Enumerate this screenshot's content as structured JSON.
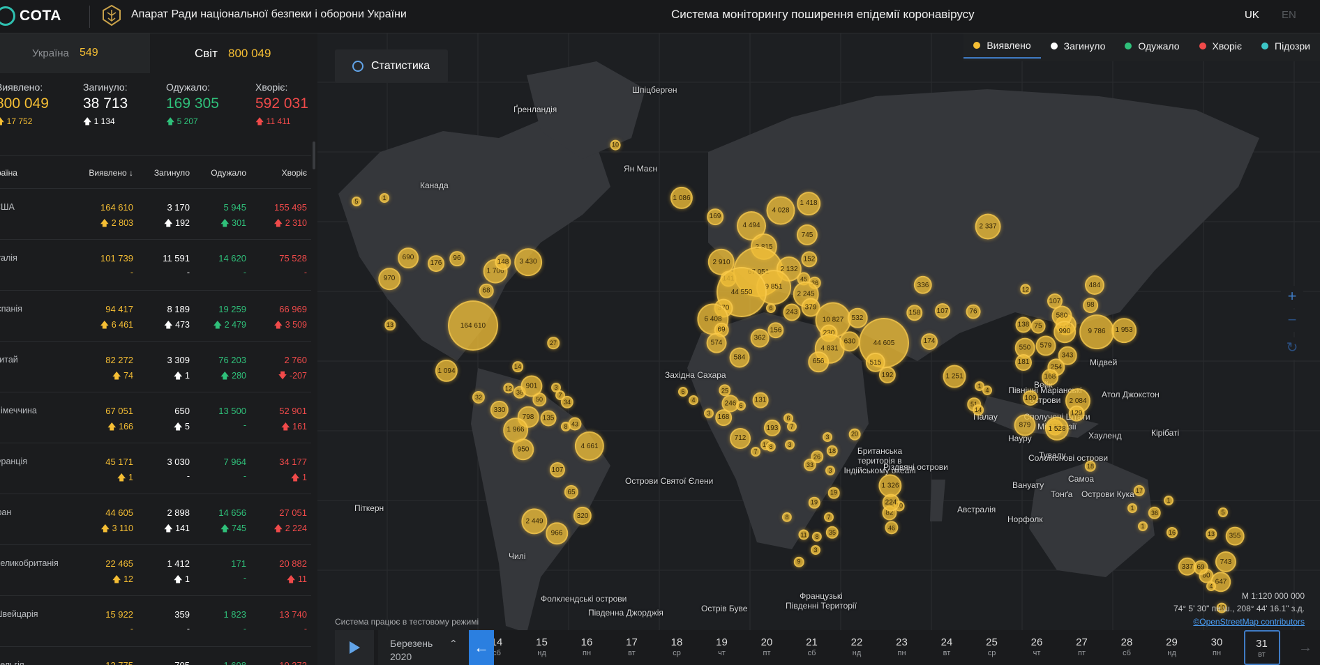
{
  "header": {
    "logo_text": "COTA",
    "org_title": "Апарат Ради національної безпеки і оборони України",
    "system_title": "Система моніторингу поширення епідемії коронавірусу",
    "lang_uk": "UK",
    "lang_en": "EN"
  },
  "tabs": {
    "ukraine_label": "Україна",
    "ukraine_value": "549",
    "world_label": "Світ",
    "world_value": "800 049"
  },
  "summary": {
    "detected": {
      "label": "Виявлено:",
      "value": "800 049",
      "delta": "17 752"
    },
    "deaths": {
      "label": "Загинуло:",
      "value": "38 713",
      "delta": "1 134"
    },
    "recovered": {
      "label": "Одужало:",
      "value": "169 305",
      "delta": "5 207"
    },
    "sick": {
      "label": "Хворіє:",
      "value": "592 031",
      "delta": "11 411"
    }
  },
  "table": {
    "headers": {
      "country": "Країна",
      "detected": "Виявлено",
      "deaths": "Загинуло",
      "recovered": "Одужало",
      "sick": "Хворіє"
    },
    "rows": [
      {
        "country": "США",
        "detected": "164 610",
        "detected_delta": "2 803",
        "deaths": "3 170",
        "deaths_delta": "192",
        "recovered": "5 945",
        "recovered_delta": "301",
        "sick": "155 495",
        "sick_delta": "2 310"
      },
      {
        "country": "Італія",
        "detected": "101 739",
        "detected_delta": "-",
        "deaths": "11 591",
        "deaths_delta": "-",
        "recovered": "14 620",
        "recovered_delta": "-",
        "sick": "75 528",
        "sick_delta": "-"
      },
      {
        "country": "Іспанія",
        "detected": "94 417",
        "detected_delta": "6 461",
        "deaths": "8 189",
        "deaths_delta": "473",
        "recovered": "19 259",
        "recovered_delta": "2 479",
        "sick": "66 969",
        "sick_delta": "3 509"
      },
      {
        "country": "Китай",
        "detected": "82 272",
        "detected_delta": "74",
        "deaths": "3 309",
        "deaths_delta": "1",
        "recovered": "76 203",
        "recovered_delta": "280",
        "sick": "2 760",
        "sick_delta": "-207"
      },
      {
        "country": "Німеччина",
        "detected": "67 051",
        "detected_delta": "166",
        "deaths": "650",
        "deaths_delta": "5",
        "recovered": "13 500",
        "recovered_delta": "-",
        "sick": "52 901",
        "sick_delta": "161"
      },
      {
        "country": "Франція",
        "detected": "45 171",
        "detected_delta": "1",
        "deaths": "3 030",
        "deaths_delta": "-",
        "recovered": "7 964",
        "recovered_delta": "-",
        "sick": "34 177",
        "sick_delta": "1"
      },
      {
        "country": "Іран",
        "detected": "44 605",
        "detected_delta": "3 110",
        "deaths": "2 898",
        "deaths_delta": "141",
        "recovered": "14 656",
        "recovered_delta": "745",
        "sick": "27 051",
        "sick_delta": "2 224"
      },
      {
        "country": "Великобританія",
        "detected": "22 465",
        "detected_delta": "12",
        "deaths": "1 412",
        "deaths_delta": "1",
        "recovered": "171",
        "recovered_delta": "-",
        "sick": "20 882",
        "sick_delta": "11"
      },
      {
        "country": "Швейцарія",
        "detected": "15 922",
        "detected_delta": "-",
        "deaths": "359",
        "deaths_delta": "-",
        "recovered": "1 823",
        "recovered_delta": "-",
        "sick": "13 740",
        "sick_delta": "-"
      },
      {
        "country": "Бельгія",
        "detected": "12 775",
        "detected_delta": "876",
        "deaths": "705",
        "deaths_delta": "192",
        "recovered": "1 698",
        "recovered_delta": "171",
        "sick": "10 372",
        "sick_delta": "513"
      }
    ]
  },
  "map": {
    "stats_button": "Статистика",
    "legend": [
      {
        "label": "Виявлено",
        "color": "#f5be34",
        "active": true
      },
      {
        "label": "Загинуло",
        "color": "#ffffff",
        "active": false
      },
      {
        "label": "Одужало",
        "color": "#2fc07a",
        "active": false
      },
      {
        "label": "Хворіє",
        "color": "#f04a4a",
        "active": false
      },
      {
        "label": "Підозри",
        "color": "#3cc6c6",
        "active": false
      }
    ],
    "zoom_in": "+",
    "zoom_out": "−",
    "reset": "↻",
    "scale": "М 1:120 000 000",
    "coords": "74° 5' 30\" пн.ш., 208° 44' 16.1\" з.д.",
    "attribution": "©OpenStreetMap contributors",
    "test_note": "Система працює в тестовому режимі",
    "labels": [
      {
        "text": "Шпіцберген"
      },
      {
        "text": "Ґренландія"
      },
      {
        "text": "Ян Маєн"
      },
      {
        "text": "Канада"
      },
      {
        "text": "Західна Сахара"
      },
      {
        "text": "Острови Святої Єлени"
      },
      {
        "text": "Піткерн"
      },
      {
        "text": "Фолклендські острови"
      },
      {
        "text": "Південна Джорджія"
      },
      {
        "text": "Острів Буве"
      },
      {
        "text": "Британська територія в Індійському океані"
      },
      {
        "text": "Різдвяні острови"
      },
      {
        "text": "Французькі Південні Території"
      },
      {
        "text": "Північні Маріанські острови"
      },
      {
        "text": "Сполучені Штати Мікронезії"
      },
      {
        "text": "Палау"
      },
      {
        "text": "Науру"
      },
      {
        "text": "Соломонові острови"
      },
      {
        "text": "Вануату"
      },
      {
        "text": "Тувалу"
      },
      {
        "text": "Самоа"
      },
      {
        "text": "Тонґа"
      },
      {
        "text": "Острови Кука"
      },
      {
        "text": "Норфолк"
      },
      {
        "text": "Австралія"
      },
      {
        "text": "Мідвей"
      },
      {
        "text": "Вейк"
      },
      {
        "text": "Атол Джокстон"
      },
      {
        "text": "Хауленд"
      },
      {
        "text": "Кірібаті"
      },
      {
        "text": "Чилі"
      }
    ],
    "bubbles": [
      {
        "value": "164 610"
      },
      {
        "value": "1 706"
      },
      {
        "value": "3 430"
      },
      {
        "value": "690"
      },
      {
        "value": "970"
      },
      {
        "value": "176"
      },
      {
        "value": "96"
      },
      {
        "value": "148"
      },
      {
        "value": "68"
      },
      {
        "value": "13"
      },
      {
        "value": "5"
      },
      {
        "value": "1"
      },
      {
        "value": "10"
      },
      {
        "value": "27"
      },
      {
        "value": "1 094"
      },
      {
        "value": "1 086"
      },
      {
        "value": "169"
      },
      {
        "value": "4 028"
      },
      {
        "value": "1 418"
      },
      {
        "value": "4 494"
      },
      {
        "value": "745"
      },
      {
        "value": "2 815"
      },
      {
        "value": "2 910"
      },
      {
        "value": "67 051"
      },
      {
        "value": "2 132"
      },
      {
        "value": "152"
      },
      {
        "value": "141"
      },
      {
        "value": "9 851"
      },
      {
        "value": "44 550"
      },
      {
        "value": "45"
      },
      {
        "value": "36"
      },
      {
        "value": "2 245"
      },
      {
        "value": "370"
      },
      {
        "value": "6"
      },
      {
        "value": "379"
      },
      {
        "value": "243"
      },
      {
        "value": "6 408"
      },
      {
        "value": "69"
      },
      {
        "value": "574"
      },
      {
        "value": "156"
      },
      {
        "value": "362"
      },
      {
        "value": "584"
      },
      {
        "value": "10 827"
      },
      {
        "value": "230"
      },
      {
        "value": "4 831"
      },
      {
        "value": "630"
      },
      {
        "value": "44 605"
      },
      {
        "value": "532"
      },
      {
        "value": "515"
      },
      {
        "value": "192"
      },
      {
        "value": "656"
      },
      {
        "value": "174"
      },
      {
        "value": "158"
      },
      {
        "value": "107"
      },
      {
        "value": "76"
      },
      {
        "value": "336"
      },
      {
        "value": "2 337"
      },
      {
        "value": "1 251"
      },
      {
        "value": "484"
      },
      {
        "value": "12"
      },
      {
        "value": "107"
      },
      {
        "value": "98"
      },
      {
        "value": "9 786"
      },
      {
        "value": "1 953"
      },
      {
        "value": "774"
      },
      {
        "value": "580"
      },
      {
        "value": "990"
      },
      {
        "value": "343"
      },
      {
        "value": "579"
      },
      {
        "value": "550"
      },
      {
        "value": "138"
      },
      {
        "value": "75"
      },
      {
        "value": "254"
      },
      {
        "value": "181"
      },
      {
        "value": "168"
      },
      {
        "value": "109"
      },
      {
        "value": "2 084"
      },
      {
        "value": "129"
      },
      {
        "value": "129"
      },
      {
        "value": "879"
      },
      {
        "value": "1 528"
      },
      {
        "value": "14"
      },
      {
        "value": "51"
      },
      {
        "value": "4"
      },
      {
        "value": "1"
      },
      {
        "value": "14"
      },
      {
        "value": "32"
      },
      {
        "value": "330"
      },
      {
        "value": "12"
      },
      {
        "value": "36"
      },
      {
        "value": "50"
      },
      {
        "value": "901"
      },
      {
        "value": "3"
      },
      {
        "value": "7"
      },
      {
        "value": "34"
      },
      {
        "value": "798"
      },
      {
        "value": "135"
      },
      {
        "value": "8"
      },
      {
        "value": "43"
      },
      {
        "value": "1 966"
      },
      {
        "value": "950"
      },
      {
        "value": "4 661"
      },
      {
        "value": "107"
      },
      {
        "value": "65"
      },
      {
        "value": "320"
      },
      {
        "value": "2 449"
      },
      {
        "value": "966"
      },
      {
        "value": "6"
      },
      {
        "value": "4"
      },
      {
        "value": "25"
      },
      {
        "value": "246"
      },
      {
        "value": "3"
      },
      {
        "value": "168"
      },
      {
        "value": "6"
      },
      {
        "value": "131"
      },
      {
        "value": "712"
      },
      {
        "value": "193"
      },
      {
        "value": "16"
      },
      {
        "value": "8"
      },
      {
        "value": "6"
      },
      {
        "value": "7"
      },
      {
        "value": "3"
      },
      {
        "value": "7"
      },
      {
        "value": "26"
      },
      {
        "value": "18"
      },
      {
        "value": "20"
      },
      {
        "value": "3"
      },
      {
        "value": "33"
      },
      {
        "value": "3"
      },
      {
        "value": "19"
      },
      {
        "value": "19"
      },
      {
        "value": "7"
      },
      {
        "value": "35"
      },
      {
        "value": "8"
      },
      {
        "value": "8"
      },
      {
        "value": "11"
      },
      {
        "value": "3"
      },
      {
        "value": "9"
      },
      {
        "value": "1 326"
      },
      {
        "value": "10"
      },
      {
        "value": "82"
      },
      {
        "value": "46"
      },
      {
        "value": "224"
      },
      {
        "value": "18"
      },
      {
        "value": "1"
      },
      {
        "value": "17"
      },
      {
        "value": "1"
      },
      {
        "value": "36"
      },
      {
        "value": "16"
      },
      {
        "value": "5"
      },
      {
        "value": "355"
      },
      {
        "value": "743"
      },
      {
        "value": "337"
      },
      {
        "value": "80"
      },
      {
        "value": "69"
      },
      {
        "value": "647"
      },
      {
        "value": "10"
      },
      {
        "value": "4"
      },
      {
        "value": "13"
      },
      {
        "value": "1"
      }
    ]
  },
  "timeline": {
    "month": "Березень",
    "year": "2020",
    "days": [
      {
        "n": "14",
        "w": "сб"
      },
      {
        "n": "15",
        "w": "нд"
      },
      {
        "n": "16",
        "w": "пн"
      },
      {
        "n": "17",
        "w": "вт"
      },
      {
        "n": "18",
        "w": "ср"
      },
      {
        "n": "19",
        "w": "чт"
      },
      {
        "n": "20",
        "w": "пт"
      },
      {
        "n": "21",
        "w": "сб"
      },
      {
        "n": "22",
        "w": "нд"
      },
      {
        "n": "23",
        "w": "пн"
      },
      {
        "n": "24",
        "w": "вт"
      },
      {
        "n": "25",
        "w": "ср"
      },
      {
        "n": "26",
        "w": "чт"
      },
      {
        "n": "27",
        "w": "пт"
      },
      {
        "n": "28",
        "w": "сб"
      },
      {
        "n": "29",
        "w": "нд"
      },
      {
        "n": "30",
        "w": "пн"
      },
      {
        "n": "31",
        "w": "вт"
      }
    ],
    "selected_day": "31"
  }
}
